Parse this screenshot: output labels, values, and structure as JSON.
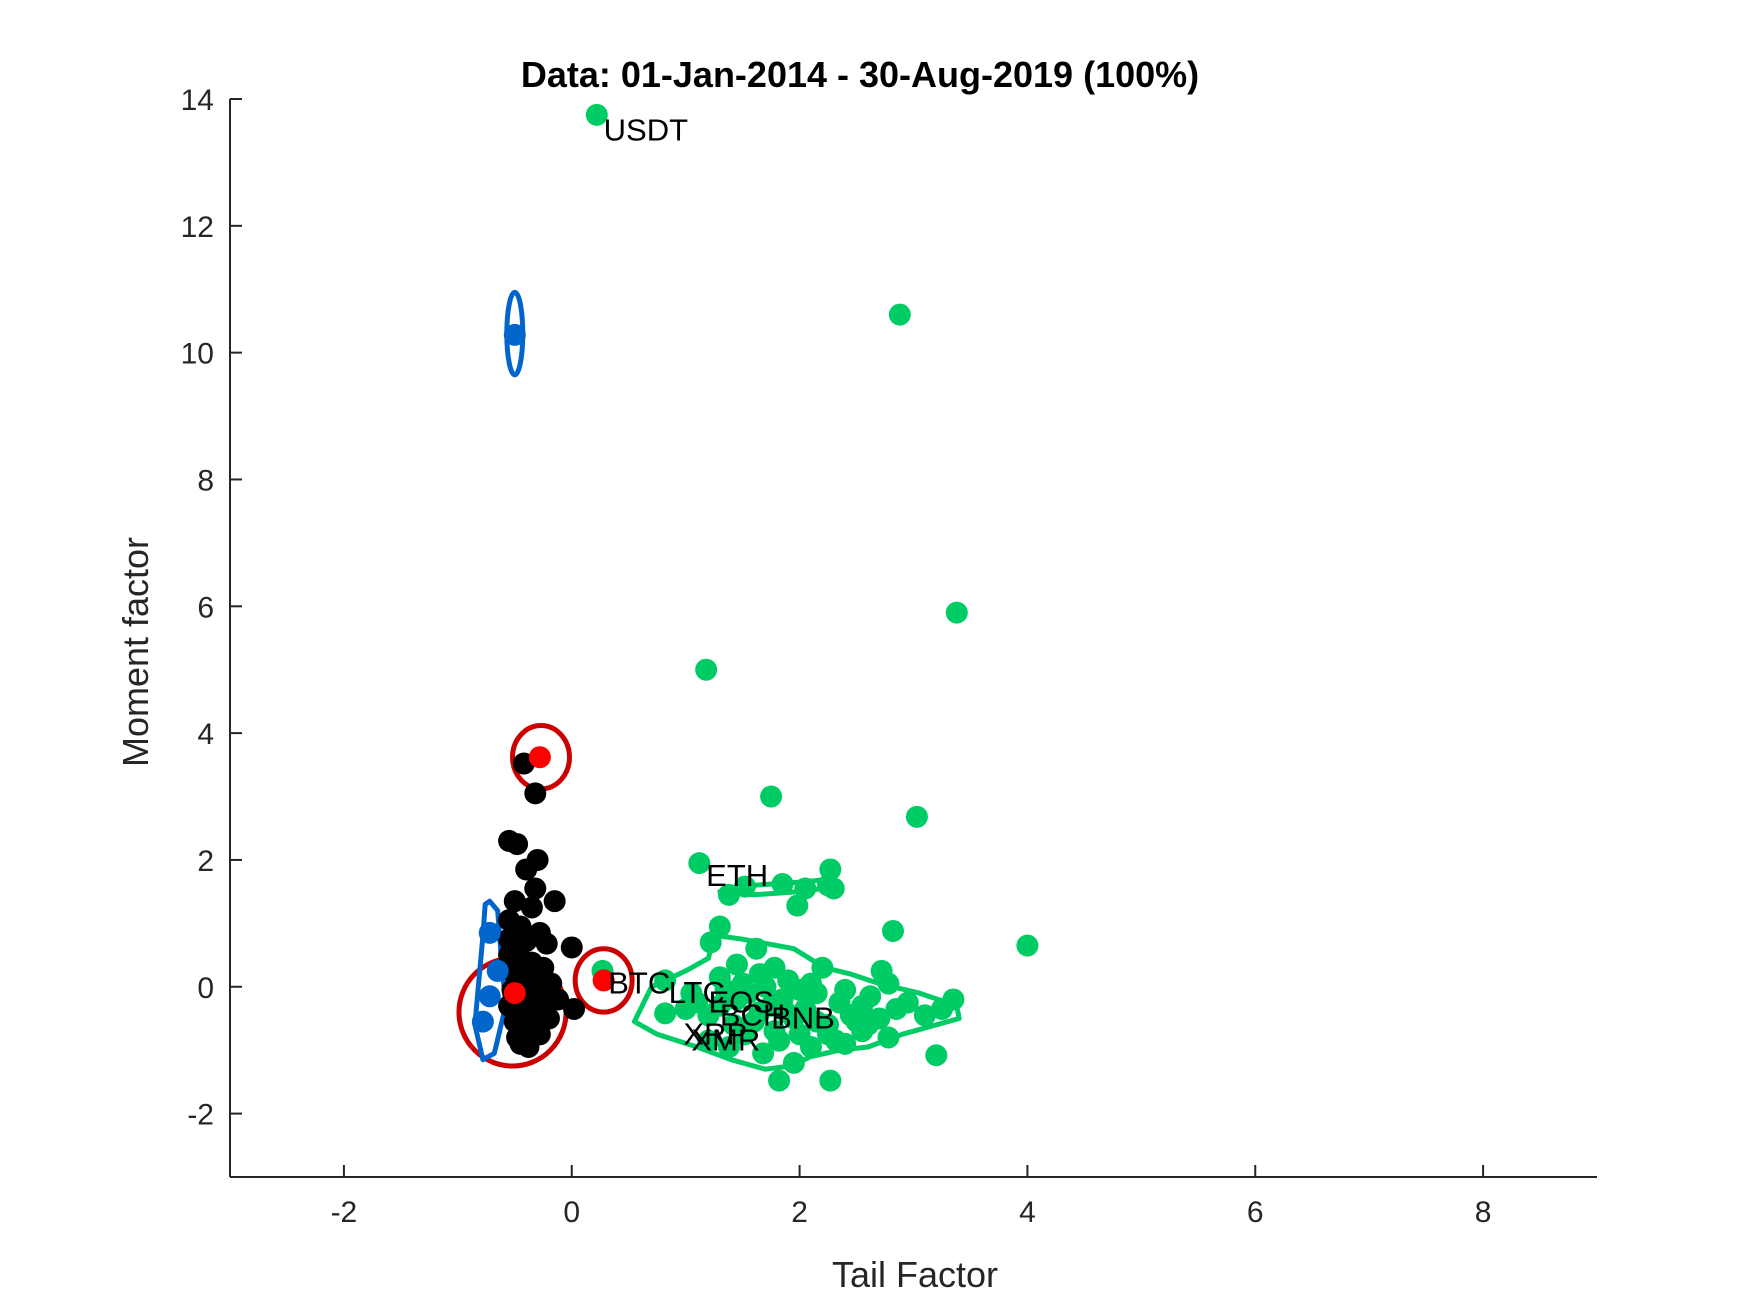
{
  "chart_data": {
    "type": "scatter",
    "title": "Data: 01-Jan-2014 - 30-Aug-2019 (100%)",
    "xlabel": "Tail Factor",
    "ylabel": "Moment factor",
    "xlim": [
      -3,
      9
    ],
    "ylim": [
      -3,
      14
    ],
    "xticks": [
      -2,
      0,
      2,
      4,
      6,
      8
    ],
    "yticks": [
      -2,
      0,
      2,
      4,
      6,
      8,
      10,
      12,
      14
    ],
    "xtick_labels": [
      "-2",
      "0",
      "2",
      "4",
      "6",
      "8"
    ],
    "ytick_labels": [
      "-2",
      "0",
      "2",
      "4",
      "6",
      "8",
      "10",
      "12",
      "14"
    ],
    "grid": false,
    "series": [
      {
        "color": "#00cc66",
        "points": [
          [
            0.22,
            13.75
          ],
          [
            2.88,
            10.6
          ],
          [
            3.38,
            5.9
          ],
          [
            1.18,
            5.0
          ],
          [
            1.75,
            3.0
          ],
          [
            3.03,
            2.68
          ],
          [
            4.0,
            0.65
          ],
          [
            2.82,
            0.88
          ],
          [
            1.12,
            1.95
          ],
          [
            2.27,
            1.85
          ],
          [
            1.85,
            1.62
          ],
          [
            2.05,
            1.55
          ],
          [
            2.3,
            1.55
          ],
          [
            1.38,
            1.45
          ],
          [
            1.52,
            1.58
          ],
          [
            1.98,
            1.28
          ],
          [
            2.25,
            1.6
          ],
          [
            1.3,
            0.95
          ],
          [
            1.22,
            0.7
          ],
          [
            1.62,
            0.6
          ],
          [
            1.45,
            0.35
          ],
          [
            1.78,
            0.3
          ],
          [
            2.2,
            0.3
          ],
          [
            2.72,
            0.25
          ],
          [
            2.78,
            0.05
          ],
          [
            0.27,
            0.25
          ],
          [
            0.82,
            0.1
          ],
          [
            1.05,
            -0.1
          ],
          [
            0.82,
            -0.42
          ],
          [
            1.0,
            -0.35
          ],
          [
            1.1,
            -0.25
          ],
          [
            1.2,
            -0.45
          ],
          [
            1.3,
            -0.3
          ],
          [
            1.45,
            -0.2
          ],
          [
            1.55,
            -0.1
          ],
          [
            1.65,
            -0.4
          ],
          [
            1.75,
            -0.3
          ],
          [
            1.85,
            -0.2
          ],
          [
            1.95,
            -0.5
          ],
          [
            2.05,
            -0.35
          ],
          [
            2.15,
            -0.1
          ],
          [
            2.25,
            -0.6
          ],
          [
            2.35,
            -0.25
          ],
          [
            2.45,
            -0.45
          ],
          [
            2.55,
            -0.3
          ],
          [
            2.62,
            -0.15
          ],
          [
            2.7,
            -0.5
          ],
          [
            2.85,
            -0.35
          ],
          [
            2.95,
            -0.25
          ],
          [
            3.1,
            -0.45
          ],
          [
            3.25,
            -0.35
          ],
          [
            3.35,
            -0.2
          ],
          [
            1.2,
            -0.85
          ],
          [
            1.38,
            -0.95
          ],
          [
            1.52,
            -0.75
          ],
          [
            1.68,
            -1.05
          ],
          [
            1.82,
            -0.85
          ],
          [
            1.95,
            -1.2
          ],
          [
            2.1,
            -0.95
          ],
          [
            2.25,
            -0.75
          ],
          [
            2.4,
            -0.9
          ],
          [
            2.55,
            -0.7
          ],
          [
            2.78,
            -0.8
          ],
          [
            1.82,
            -1.48
          ],
          [
            2.27,
            -1.48
          ],
          [
            3.2,
            -1.08
          ],
          [
            1.3,
            0.15
          ],
          [
            1.5,
            0.05
          ],
          [
            1.65,
            0.2
          ],
          [
            1.9,
            0.1
          ],
          [
            2.0,
            -0.05
          ],
          [
            2.1,
            0.05
          ],
          [
            1.42,
            -0.6
          ],
          [
            1.6,
            -0.55
          ],
          [
            1.78,
            -0.7
          ],
          [
            2.0,
            -0.75
          ],
          [
            2.15,
            -0.55
          ],
          [
            2.32,
            -0.85
          ],
          [
            2.5,
            -0.55
          ],
          [
            1.35,
            -0.05
          ],
          [
            1.7,
            0.0
          ],
          [
            1.88,
            -0.4
          ],
          [
            2.4,
            -0.05
          ],
          [
            2.6,
            -0.6
          ]
        ]
      },
      {
        "color": "#000000",
        "points": [
          [
            -0.42,
            3.52
          ],
          [
            -0.32,
            3.05
          ],
          [
            -0.55,
            2.3
          ],
          [
            -0.48,
            2.25
          ],
          [
            -0.3,
            2.0
          ],
          [
            -0.4,
            1.85
          ],
          [
            -0.32,
            1.55
          ],
          [
            -0.5,
            1.35
          ],
          [
            -0.15,
            1.35
          ],
          [
            -0.35,
            1.25
          ],
          [
            -0.55,
            1.05
          ],
          [
            -0.45,
            0.95
          ],
          [
            -0.28,
            0.85
          ],
          [
            -0.55,
            0.75
          ],
          [
            -0.4,
            0.72
          ],
          [
            -0.22,
            0.68
          ],
          [
            0.0,
            0.62
          ],
          [
            -0.55,
            0.5
          ],
          [
            -0.45,
            0.45
          ],
          [
            -0.35,
            0.38
          ],
          [
            -0.25,
            0.3
          ],
          [
            -0.5,
            0.2
          ],
          [
            -0.4,
            0.15
          ],
          [
            -0.3,
            0.12
          ],
          [
            -0.18,
            0.05
          ],
          [
            -0.52,
            -0.05
          ],
          [
            -0.42,
            -0.1
          ],
          [
            -0.32,
            -0.15
          ],
          [
            -0.22,
            -0.05
          ],
          [
            -0.12,
            -0.2
          ],
          [
            -0.55,
            -0.3
          ],
          [
            -0.45,
            -0.35
          ],
          [
            -0.35,
            -0.4
          ],
          [
            -0.25,
            -0.3
          ],
          [
            0.02,
            -0.35
          ],
          [
            -0.5,
            -0.55
          ],
          [
            -0.4,
            -0.6
          ],
          [
            -0.3,
            -0.65
          ],
          [
            -0.2,
            -0.5
          ],
          [
            -0.48,
            -0.8
          ],
          [
            -0.38,
            -0.85
          ],
          [
            -0.28,
            -0.75
          ],
          [
            -0.38,
            -0.95
          ],
          [
            -0.45,
            -0.9
          ]
        ]
      },
      {
        "color": "#ff0000",
        "points": [
          [
            -0.28,
            3.62
          ],
          [
            0.28,
            0.1
          ],
          [
            -0.5,
            -0.1
          ]
        ]
      },
      {
        "color": "#0066cc",
        "points": [
          [
            -0.5,
            10.28
          ],
          [
            -0.72,
            0.85
          ],
          [
            -0.78,
            -0.55
          ],
          [
            -0.65,
            0.25
          ],
          [
            -0.72,
            -0.15
          ]
        ]
      }
    ],
    "labels": [
      {
        "text": "USDT",
        "x": 0.28,
        "y": 13.5
      },
      {
        "text": "ETH",
        "x": 1.18,
        "y": 1.75
      },
      {
        "text": "BTC",
        "x": 0.32,
        "y": 0.05
      },
      {
        "text": "LTC",
        "x": 0.85,
        "y": -0.1
      },
      {
        "text": "EOS",
        "x": 1.2,
        "y": -0.25
      },
      {
        "text": "BNB",
        "x": 1.75,
        "y": -0.5
      },
      {
        "text": "BCH",
        "x": 1.3,
        "y": -0.45
      },
      {
        "text": "XRP",
        "x": 0.98,
        "y": -0.75
      },
      {
        "text": "XMR",
        "x": 1.05,
        "y": -0.85
      }
    ],
    "contours": [
      {
        "color": "#00cc66",
        "points": [
          [
            0.55,
            -0.55
          ],
          [
            0.7,
            0.0
          ],
          [
            1.0,
            0.25
          ],
          [
            1.2,
            0.45
          ],
          [
            1.25,
            0.85
          ],
          [
            1.35,
            1.0
          ],
          [
            1.3,
            0.8
          ],
          [
            1.5,
            0.75
          ],
          [
            1.95,
            0.6
          ],
          [
            2.22,
            0.3
          ],
          [
            2.45,
            0.2
          ],
          [
            2.7,
            0.05
          ],
          [
            3.05,
            -0.1
          ],
          [
            3.38,
            -0.3
          ],
          [
            3.4,
            -0.5
          ],
          [
            3.2,
            -0.6
          ],
          [
            2.9,
            -0.75
          ],
          [
            2.6,
            -0.95
          ],
          [
            2.35,
            -1.0
          ],
          [
            2.1,
            -1.1
          ],
          [
            1.92,
            -1.25
          ],
          [
            1.7,
            -1.3
          ],
          [
            1.4,
            -1.15
          ],
          [
            1.1,
            -0.95
          ],
          [
            0.75,
            -0.75
          ],
          [
            0.55,
            -0.55
          ]
        ]
      },
      {
        "color": "#00cc66",
        "points": [
          [
            1.3,
            1.5
          ],
          [
            1.6,
            1.6
          ],
          [
            2.0,
            1.65
          ],
          [
            2.3,
            1.7
          ],
          [
            2.32,
            1.58
          ],
          [
            2.0,
            1.5
          ],
          [
            1.6,
            1.45
          ],
          [
            1.3,
            1.5
          ]
        ]
      },
      {
        "color": "#cc0000",
        "ellipse": {
          "cx": -0.27,
          "cy": 3.62,
          "rx": 0.25,
          "ry": 0.5
        }
      },
      {
        "color": "#cc0000",
        "ellipse": {
          "cx": 0.28,
          "cy": 0.1,
          "rx": 0.25,
          "ry": 0.5
        }
      },
      {
        "color": "#cc0000",
        "ellipse": {
          "cx": -0.52,
          "cy": -0.4,
          "rx": 0.47,
          "ry": 0.85
        }
      },
      {
        "color": "#0066cc",
        "ellipse": {
          "cx": -0.5,
          "cy": 10.3,
          "rx": 0.07,
          "ry": 0.65
        }
      },
      {
        "color": "#0066cc",
        "points": [
          [
            -0.72,
            1.35
          ],
          [
            -0.65,
            1.2
          ],
          [
            -0.62,
            0.5
          ],
          [
            -0.58,
            -0.3
          ],
          [
            -0.68,
            -1.05
          ],
          [
            -0.78,
            -1.15
          ],
          [
            -0.85,
            -0.6
          ],
          [
            -0.82,
            0.0
          ],
          [
            -0.78,
            0.8
          ],
          [
            -0.76,
            1.3
          ],
          [
            -0.72,
            1.35
          ]
        ]
      }
    ]
  }
}
